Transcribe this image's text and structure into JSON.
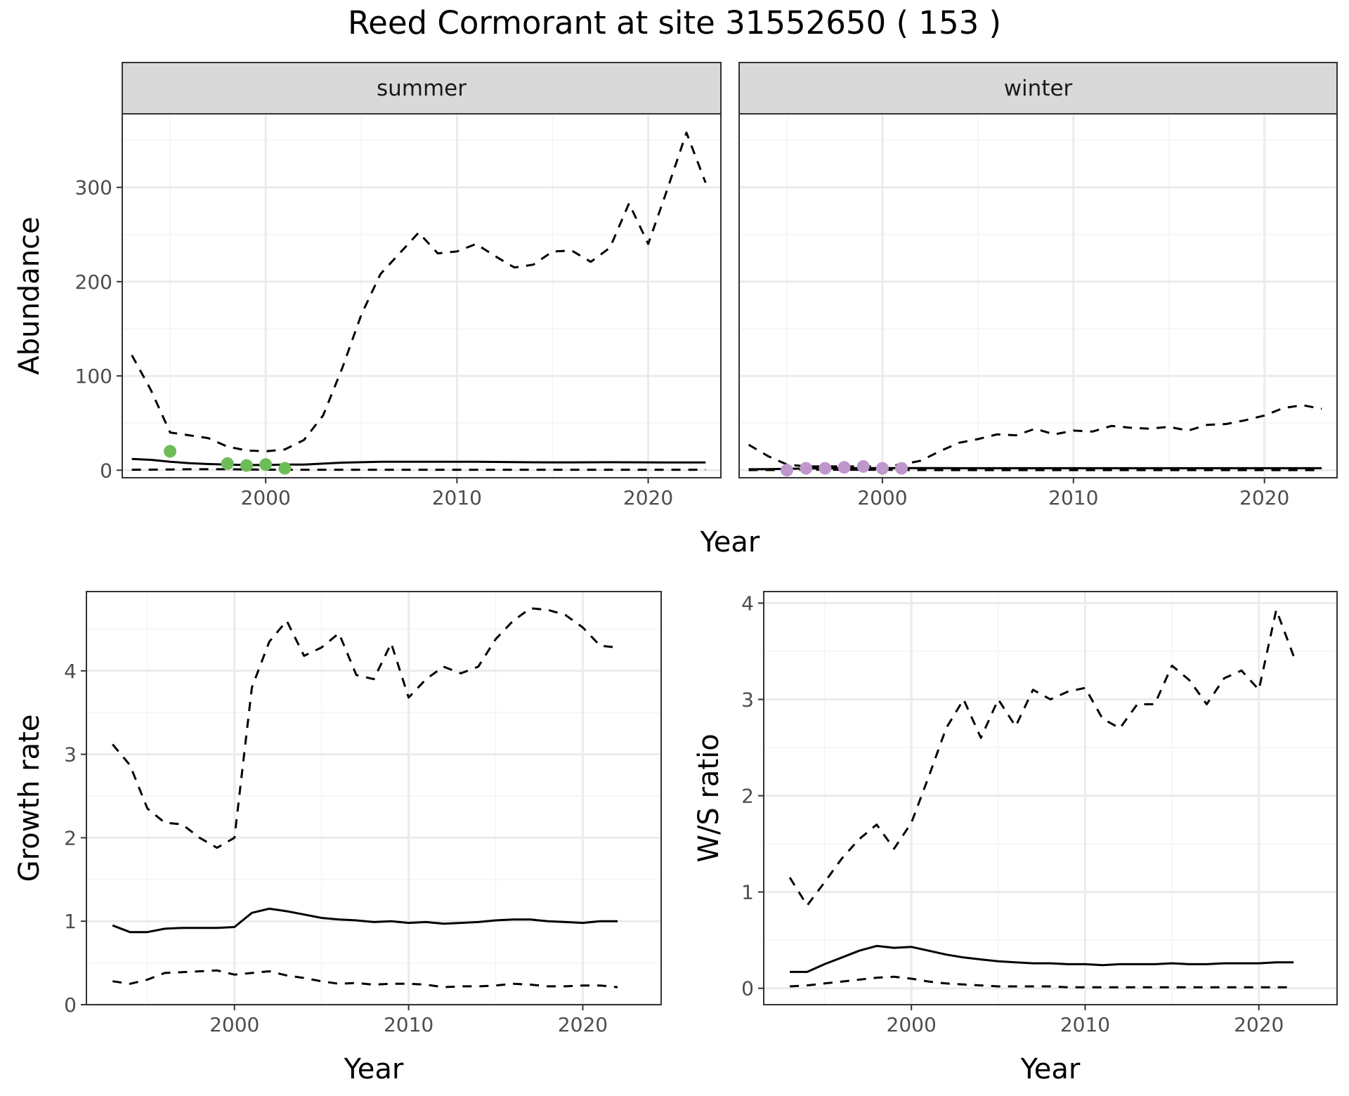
{
  "title": "Reed Cormorant at site 31552650 ( 153 )",
  "colors": {
    "summer_points": "#6cbd5a",
    "winter_points": "#bf97cc",
    "line": "#000000",
    "grid_major": "#ebebeb",
    "grid_minor": "#f4f4f4",
    "strip_fill": "#d9d9d9",
    "panel_border": "#333333"
  },
  "chart_data": [
    {
      "type": "line",
      "facets": [
        "summer",
        "winter"
      ],
      "xlabel": "Year",
      "ylabel": "Abundance",
      "xlim": [
        1992.5,
        2023.8
      ],
      "ylim": [
        -8,
        378
      ],
      "xticks": [
        2000,
        2010,
        2020
      ],
      "yticks": [
        0,
        100,
        200,
        300
      ],
      "grid": true,
      "panels": [
        {
          "name": "summer",
          "estimate": {
            "x": [
              1993,
              1994,
              1995,
              1996,
              1997,
              1998,
              1999,
              2000,
              2001,
              2002,
              2003,
              2004,
              2005,
              2006,
              2007,
              2008,
              2009,
              2010,
              2011,
              2012,
              2013,
              2014,
              2015,
              2016,
              2017,
              2018,
              2019,
              2020,
              2021,
              2022,
              2023
            ],
            "y": [
              12,
              11,
              9,
              7.5,
              6.5,
              6,
              5.5,
              5.5,
              6,
              6,
              7,
              8,
              8.5,
              9,
              9,
              9,
              9,
              9,
              9,
              8.8,
              8.6,
              8.4,
              8.3,
              8.3,
              8.4,
              8.5,
              8.4,
              8.3,
              8.2,
              8.2,
              8.2
            ]
          },
          "upper": {
            "x": [
              1993,
              1994,
              1995,
              1996,
              1997,
              1998,
              1999,
              2000,
              2001,
              2002,
              2003,
              2004,
              2005,
              2006,
              2007,
              2008,
              2009,
              2010,
              2011,
              2012,
              2013,
              2014,
              2015,
              2016,
              2017,
              2018,
              2019,
              2020,
              2021,
              2022,
              2023
            ],
            "y": [
              122,
              85,
              40,
              37,
              34,
              25,
              21,
              20,
              22,
              32,
              58,
              108,
              165,
              208,
              230,
              252,
              230,
              232,
              240,
              227,
              215,
              218,
              232,
              233,
              221,
              236,
              283,
              240,
              298,
              358,
              305
            ]
          },
          "lower": {
            "x": [
              1993,
              1994,
              1995,
              1996,
              1997,
              1998,
              1999,
              2000,
              2001,
              2002,
              2003,
              2004,
              2005,
              2006,
              2007,
              2008,
              2009,
              2010,
              2011,
              2012,
              2013,
              2014,
              2015,
              2016,
              2017,
              2018,
              2019,
              2020,
              2021,
              2022,
              2023
            ],
            "y": [
              0.5,
              0.6,
              0.8,
              1,
              1,
              1,
              0.8,
              0.6,
              0.5,
              0.5,
              0.5,
              0.5,
              0.5,
              0.5,
              0.5,
              0.5,
              0.5,
              0.5,
              0.5,
              0.5,
              0.5,
              0.5,
              0.5,
              0.5,
              0.5,
              0.5,
              0.5,
              0.5,
              0.5,
              0.5,
              0.5
            ]
          },
          "points": {
            "x": [
              1995,
              1998,
              1999,
              2000,
              2001
            ],
            "y": [
              20,
              7,
              5,
              6,
              2
            ]
          }
        },
        {
          "name": "winter",
          "estimate": {
            "x": [
              1993,
              1994,
              1995,
              1996,
              1997,
              1998,
              1999,
              2000,
              2001,
              2002,
              2003,
              2004,
              2005,
              2006,
              2007,
              2008,
              2009,
              2010,
              2011,
              2012,
              2013,
              2014,
              2015,
              2016,
              2017,
              2018,
              2019,
              2020,
              2021,
              2022,
              2023
            ],
            "y": [
              1,
              1.2,
              1.5,
              1.8,
              2,
              2.2,
              2.3,
              2.3,
              2.2,
              2.2,
              2.2,
              2.1,
              2.1,
              2.1,
              2.1,
              2.1,
              2.1,
              2.1,
              2.1,
              2.1,
              2.1,
              2.1,
              2.1,
              2.1,
              2.1,
              2.1,
              2.1,
              2.1,
              2.1,
              2.1,
              2.1
            ]
          },
          "upper": {
            "x": [
              1993,
              1994,
              1995,
              1996,
              1997,
              1998,
              1999,
              2000,
              2001,
              2002,
              2003,
              2004,
              2005,
              2006,
              2007,
              2008,
              2009,
              2010,
              2011,
              2012,
              2013,
              2014,
              2015,
              2016,
              2017,
              2018,
              2019,
              2020,
              2021,
              2022,
              2023
            ],
            "y": [
              27,
              15,
              6,
              4,
              4,
              4,
              4,
              4,
              6,
              10,
              20,
              29,
              33,
              38,
              37,
              44,
              38,
              42,
              41,
              47,
              45,
              44,
              46,
              42,
              48,
              49,
              53,
              58,
              66,
              69,
              65
            ]
          },
          "lower": {
            "x": [
              1993,
              1994,
              1995,
              1996,
              1997,
              1998,
              1999,
              2000,
              2001,
              2002,
              2003,
              2004,
              2005,
              2006,
              2007,
              2008,
              2009,
              2010,
              2011,
              2012,
              2013,
              2014,
              2015,
              2016,
              2017,
              2018,
              2019,
              2020,
              2021,
              2022,
              2023
            ],
            "y": [
              0.1,
              0.2,
              0.3,
              0.4,
              0.5,
              0.5,
              0.5,
              0.4,
              0.3,
              0.2,
              0.1,
              0.1,
              0.1,
              0.1,
              0.1,
              0.1,
              0.1,
              0.1,
              0.1,
              0.1,
              0.1,
              0.1,
              0.1,
              0.1,
              0.1,
              0.1,
              0.1,
              0.1,
              0.1,
              0.1,
              0.1
            ]
          },
          "points": {
            "x": [
              1995,
              1996,
              1997,
              1998,
              1999,
              2000,
              2001
            ],
            "y": [
              0,
              2,
              2,
              3,
              4,
              2,
              2
            ]
          }
        }
      ]
    },
    {
      "type": "line",
      "xlabel": "Year",
      "ylabel": "Growth rate",
      "xlim": [
        1991.5,
        2024.5
      ],
      "ylim": [
        0,
        4.95
      ],
      "xticks": [
        2000,
        2010,
        2020
      ],
      "yticks": [
        0,
        1,
        2,
        3,
        4
      ],
      "grid": true,
      "estimate": {
        "x": [
          1993,
          1994,
          1995,
          1996,
          1997,
          1998,
          1999,
          2000,
          2001,
          2002,
          2003,
          2004,
          2005,
          2006,
          2007,
          2008,
          2009,
          2010,
          2011,
          2012,
          2013,
          2014,
          2015,
          2016,
          2017,
          2018,
          2019,
          2020,
          2021,
          2022
        ],
        "y": [
          0.95,
          0.87,
          0.87,
          0.91,
          0.92,
          0.92,
          0.92,
          0.93,
          1.1,
          1.15,
          1.12,
          1.08,
          1.04,
          1.02,
          1.01,
          0.99,
          1.0,
          0.98,
          0.99,
          0.97,
          0.98,
          0.99,
          1.01,
          1.02,
          1.02,
          1.0,
          0.99,
          0.98,
          1.0,
          1.0
        ]
      },
      "upper": {
        "x": [
          1993,
          1994,
          1995,
          1996,
          1997,
          1998,
          1999,
          2000,
          2001,
          2002,
          2003,
          2004,
          2005,
          2006,
          2007,
          2008,
          2009,
          2010,
          2011,
          2012,
          2013,
          2014,
          2015,
          2016,
          2017,
          2018,
          2019,
          2020,
          2021,
          2022
        ],
        "y": [
          3.12,
          2.87,
          2.35,
          2.18,
          2.16,
          2.0,
          1.88,
          2.0,
          3.8,
          4.35,
          4.6,
          4.18,
          4.28,
          4.45,
          3.95,
          3.9,
          4.33,
          3.68,
          3.9,
          4.05,
          3.97,
          4.05,
          4.38,
          4.6,
          4.75,
          4.73,
          4.67,
          4.52,
          4.3,
          4.28
        ]
      },
      "lower": {
        "x": [
          1993,
          1994,
          1995,
          1996,
          1997,
          1998,
          1999,
          2000,
          2001,
          2002,
          2003,
          2004,
          2005,
          2006,
          2007,
          2008,
          2009,
          2010,
          2011,
          2012,
          2013,
          2014,
          2015,
          2016,
          2017,
          2018,
          2019,
          2020,
          2021,
          2022
        ],
        "y": [
          0.28,
          0.25,
          0.3,
          0.38,
          0.39,
          0.4,
          0.41,
          0.36,
          0.38,
          0.4,
          0.35,
          0.32,
          0.28,
          0.25,
          0.26,
          0.24,
          0.25,
          0.25,
          0.24,
          0.21,
          0.22,
          0.22,
          0.23,
          0.25,
          0.24,
          0.22,
          0.22,
          0.23,
          0.23,
          0.21
        ]
      }
    },
    {
      "type": "line",
      "xlabel": "Year",
      "ylabel": "W/S ratio",
      "xlim": [
        1991.5,
        2024.5
      ],
      "ylim": [
        -0.17,
        4.12
      ],
      "xticks": [
        2000,
        2010,
        2020
      ],
      "yticks": [
        0,
        1,
        2,
        3,
        4
      ],
      "grid": true,
      "estimate": {
        "x": [
          1993,
          1994,
          1995,
          1996,
          1997,
          1998,
          1999,
          2000,
          2001,
          2002,
          2003,
          2004,
          2005,
          2006,
          2007,
          2008,
          2009,
          2010,
          2011,
          2012,
          2013,
          2014,
          2015,
          2016,
          2017,
          2018,
          2019,
          2020,
          2021,
          2022
        ],
        "y": [
          0.17,
          0.17,
          0.25,
          0.32,
          0.39,
          0.44,
          0.42,
          0.43,
          0.39,
          0.35,
          0.32,
          0.3,
          0.28,
          0.27,
          0.26,
          0.26,
          0.25,
          0.25,
          0.24,
          0.25,
          0.25,
          0.25,
          0.26,
          0.25,
          0.25,
          0.26,
          0.26,
          0.26,
          0.27,
          0.27
        ]
      },
      "upper": {
        "x": [
          1993,
          1994,
          1995,
          1996,
          1997,
          1998,
          1999,
          2000,
          2001,
          2002,
          2003,
          2004,
          2005,
          2006,
          2007,
          2008,
          2009,
          2010,
          2011,
          2012,
          2013,
          2014,
          2015,
          2016,
          2017,
          2018,
          2019,
          2020,
          2021,
          2022
        ],
        "y": [
          1.15,
          0.86,
          1.1,
          1.35,
          1.55,
          1.7,
          1.45,
          1.72,
          2.2,
          2.7,
          3.0,
          2.6,
          3.0,
          2.72,
          3.1,
          3.0,
          3.08,
          3.12,
          2.8,
          2.7,
          2.95,
          2.95,
          3.35,
          3.2,
          2.95,
          3.22,
          3.3,
          3.1,
          3.93,
          3.45
        ]
      },
      "lower": {
        "x": [
          1993,
          1994,
          1995,
          1996,
          1997,
          1998,
          1999,
          2000,
          2001,
          2002,
          2003,
          2004,
          2005,
          2006,
          2007,
          2008,
          2009,
          2010,
          2011,
          2012,
          2013,
          2014,
          2015,
          2016,
          2017,
          2018,
          2019,
          2020,
          2021,
          2022
        ],
        "y": [
          0.02,
          0.03,
          0.05,
          0.07,
          0.09,
          0.11,
          0.12,
          0.1,
          0.07,
          0.05,
          0.04,
          0.03,
          0.02,
          0.02,
          0.02,
          0.02,
          0.01,
          0.01,
          0.01,
          0.01,
          0.01,
          0.01,
          0.01,
          0.01,
          0.01,
          0.01,
          0.01,
          0.01,
          0.01,
          0.01
        ]
      }
    }
  ]
}
